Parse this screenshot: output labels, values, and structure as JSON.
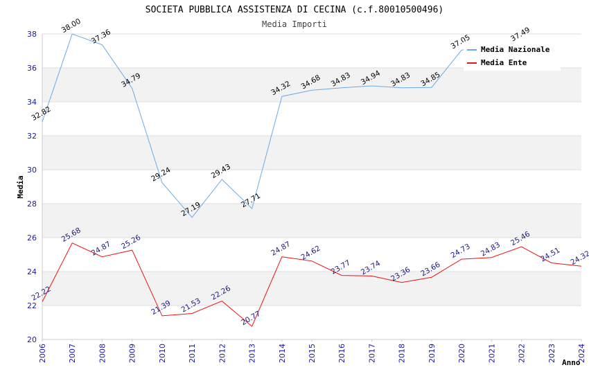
{
  "chart_data": {
    "type": "line",
    "title": "SOCIETA PUBBLICA ASSISTENZA DI CECINA (c.f.80010500496)",
    "subtitle": "Media Importi",
    "xlabel": "Anno",
    "ylabel": "Media",
    "ylim": [
      20,
      38
    ],
    "yticks": [
      "20",
      "22",
      "24",
      "26",
      "28",
      "30",
      "32",
      "34",
      "36",
      "38"
    ],
    "x": [
      "2006",
      "2007",
      "2008",
      "2009",
      "2010",
      "2011",
      "2012",
      "2013",
      "2014",
      "2015",
      "2016",
      "2017",
      "2018",
      "2019",
      "2020",
      "2021",
      "2022",
      "2023",
      "2024"
    ],
    "grid": "horizontal alternating bands",
    "legend_position": "top-right",
    "series": [
      {
        "name": "Media Nazionale",
        "color": "#6aaae8",
        "values": [
          32.82,
          38.0,
          37.36,
          34.79,
          29.24,
          27.19,
          29.43,
          27.71,
          34.32,
          34.68,
          34.83,
          34.94,
          34.83,
          34.85,
          37.05,
          null,
          37.49,
          null,
          null
        ],
        "labels": [
          "32.82",
          "38.00",
          "37.36",
          "34.79",
          "29.24",
          "27.19",
          "29.43",
          "27.71",
          "34.32",
          "34.68",
          "34.83",
          "34.94",
          "34.83",
          "34.85",
          "37.05",
          null,
          "37.49",
          null,
          null
        ]
      },
      {
        "name": "Media Ente",
        "color": "#ee1111",
        "values": [
          22.22,
          25.68,
          24.87,
          25.26,
          21.39,
          21.53,
          22.26,
          20.77,
          24.87,
          24.62,
          23.77,
          23.74,
          23.36,
          23.66,
          24.73,
          24.83,
          25.46,
          24.51,
          24.32
        ],
        "labels": [
          "22.22",
          "25.68",
          "24.87",
          "25.26",
          "21.39",
          "21.53",
          "22.26",
          "20.77",
          "24.87",
          "24.62",
          "23.77",
          "23.74",
          "23.36",
          "23.66",
          "24.73",
          "24.83",
          "25.46",
          "24.51",
          "24.32"
        ]
      }
    ]
  }
}
